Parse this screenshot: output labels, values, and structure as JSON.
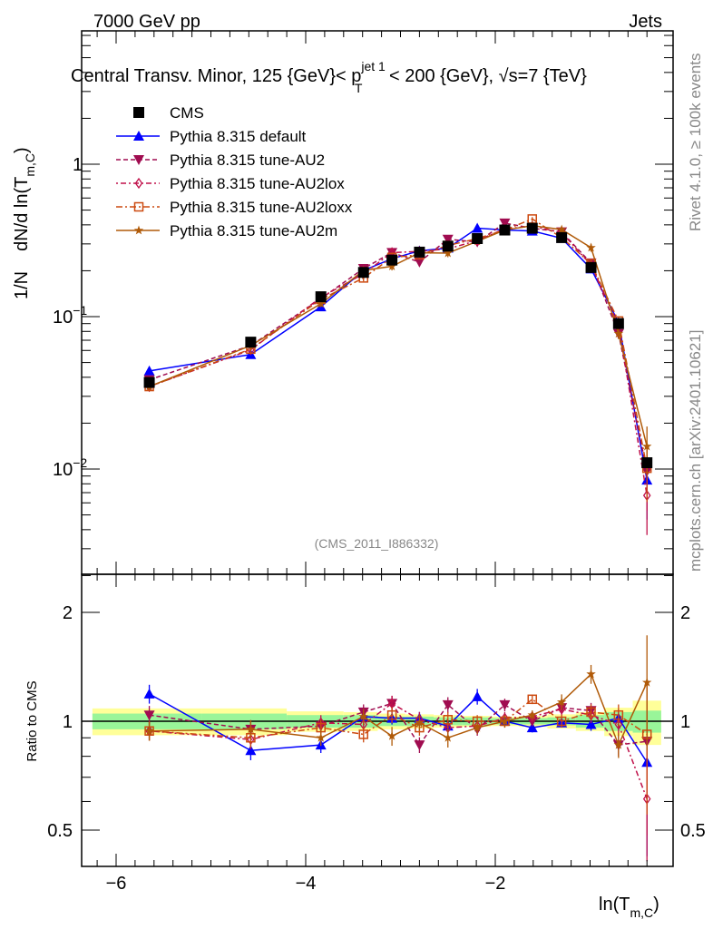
{
  "header": {
    "left": "7000 GeV pp",
    "right": "Jets"
  },
  "title": {
    "part1": "Central Transv. Minor, 125 {GeV}< p",
    "sup": "jet 1",
    "sub": "T",
    "part2": " < 200 {GeV}, ",
    "sqrt": "√",
    "part3": "s=7 {TeV}"
  },
  "side_labels": {
    "rivet": "Rivet 4.1.0, ≥ 100k events",
    "mcplots": "mcplots.cern.ch [arXiv:2401.10621]"
  },
  "analysis_id": "(CMS_2011_I886332)",
  "chart_data": {
    "type": "line",
    "ylabel": {
      "a": "1/N",
      "b": "dN/d ln(T",
      "sub": "m,C",
      "c": ")"
    },
    "xlabel": {
      "a": "ln(T",
      "sub": "m,C",
      "c": ")"
    },
    "ratio_ylabel": "Ratio to CMS",
    "xlim": [
      -6.36,
      -0.12
    ],
    "ylim": [
      0.002,
      7.4
    ],
    "ratio_ylim": [
      0.4,
      2.55
    ],
    "x_ticks": [
      {
        "v": -6,
        "label": "−6"
      },
      {
        "v": -4,
        "label": "−4"
      },
      {
        "v": -2,
        "label": "−2"
      }
    ],
    "y_ticks": [
      {
        "v": 1,
        "label": "1",
        "exp": ""
      },
      {
        "v": 0.1,
        "label": "10",
        "exp": "−1"
      },
      {
        "v": 0.01,
        "label": "10",
        "exp": "−2"
      }
    ],
    "ratio_ticks": [
      {
        "v": 0.5,
        "label": "0.5"
      },
      {
        "v": 1,
        "label": "1"
      },
      {
        "v": 2,
        "label": "2"
      }
    ],
    "x": [
      -5.65,
      -4.58,
      -3.84,
      -3.39,
      -3.09,
      -2.8,
      -2.5,
      -2.19,
      -1.9,
      -1.61,
      -1.3,
      -0.99,
      -0.7,
      -0.4
    ],
    "bin_edges": [
      -6.25,
      -5.1,
      -4.2,
      -3.6,
      -3.24,
      -2.95,
      -2.65,
      -2.35,
      -2.05,
      -1.75,
      -1.45,
      -1.15,
      -0.85,
      -0.55,
      -0.25
    ],
    "data": {
      "name": "CMS",
      "values": [
        0.037,
        0.068,
        0.135,
        0.195,
        0.235,
        0.265,
        0.29,
        0.325,
        0.37,
        0.38,
        0.33,
        0.21,
        0.09,
        0.011
      ],
      "stat_band": [
        0.05,
        0.05,
        0.04,
        0.04,
        0.03,
        0.03,
        0.025,
        0.025,
        0.02,
        0.02,
        0.025,
        0.04,
        0.06,
        0.07
      ],
      "total_band": [
        0.085,
        0.085,
        0.065,
        0.06,
        0.05,
        0.045,
        0.04,
        0.035,
        0.03,
        0.035,
        0.045,
        0.06,
        0.09,
        0.14
      ]
    },
    "series": [
      {
        "name": "Pythia 8.315 default",
        "color": "#0000ff",
        "marker": "triangle-up",
        "dash": "",
        "ratio": [
          1.19,
          0.83,
          0.86,
          1.03,
          1.02,
          1.02,
          0.97,
          1.17,
          1.0,
          0.96,
          0.99,
          0.98,
          1.02,
          0.77
        ],
        "rel_err": [
          0.06,
          0.06,
          0.05,
          0.04,
          0.04,
          0.04,
          0.04,
          0.05,
          0.03,
          0.03,
          0.03,
          0.04,
          0.06,
          0.45
        ]
      },
      {
        "name": "Pythia 8.315 tune-AU2",
        "color": "#a00c50",
        "marker": "triangle-down",
        "dash": "5,3",
        "ratio": [
          1.04,
          0.95,
          0.97,
          1.06,
          1.12,
          0.86,
          1.11,
          0.95,
          1.11,
          1.0,
          1.09,
          1.07,
          0.86,
          0.88
        ],
        "rel_err": [
          0.06,
          0.06,
          0.05,
          0.05,
          0.05,
          0.05,
          0.05,
          0.04,
          0.04,
          0.03,
          0.04,
          0.05,
          0.07,
          0.45
        ]
      },
      {
        "name": "Pythia 8.315 tune-AU2lox",
        "color": "#c0104a",
        "marker": "diamond-open",
        "dash": "2,3,6,3",
        "ratio": [
          0.94,
          0.89,
          0.99,
          0.98,
          1.12,
          1.01,
          0.96,
          0.97,
          1.02,
          1.03,
          1.08,
          1.04,
          0.98,
          0.61
        ],
        "rel_err": [
          0.06,
          0.06,
          0.05,
          0.05,
          0.05,
          0.05,
          0.05,
          0.04,
          0.04,
          0.03,
          0.04,
          0.05,
          0.07,
          0.45
        ]
      },
      {
        "name": "Pythia 8.315 tune-AU2loxx",
        "color": "#cc4a10",
        "marker": "square-open",
        "dash": "7,3,2,3",
        "ratio": [
          0.94,
          0.9,
          0.96,
          0.92,
          1.04,
          0.96,
          1.01,
          1.0,
          1.0,
          1.15,
          1.0,
          1.06,
          1.04,
          0.92
        ],
        "rel_err": [
          0.06,
          0.06,
          0.05,
          0.05,
          0.05,
          0.05,
          0.05,
          0.04,
          0.04,
          0.03,
          0.04,
          0.05,
          0.07,
          0.4
        ]
      },
      {
        "name": "Pythia 8.315 tune-AU2m",
        "color": "#b05a08",
        "marker": "star",
        "dash": "",
        "ratio": [
          0.94,
          0.95,
          0.9,
          1.03,
          0.91,
          0.99,
          0.9,
          0.96,
          1.0,
          1.04,
          1.13,
          1.35,
          0.86,
          1.28
        ],
        "rel_err": [
          0.06,
          0.06,
          0.05,
          0.05,
          0.06,
          0.05,
          0.06,
          0.04,
          0.04,
          0.03,
          0.05,
          0.06,
          0.08,
          0.35
        ]
      }
    ]
  }
}
